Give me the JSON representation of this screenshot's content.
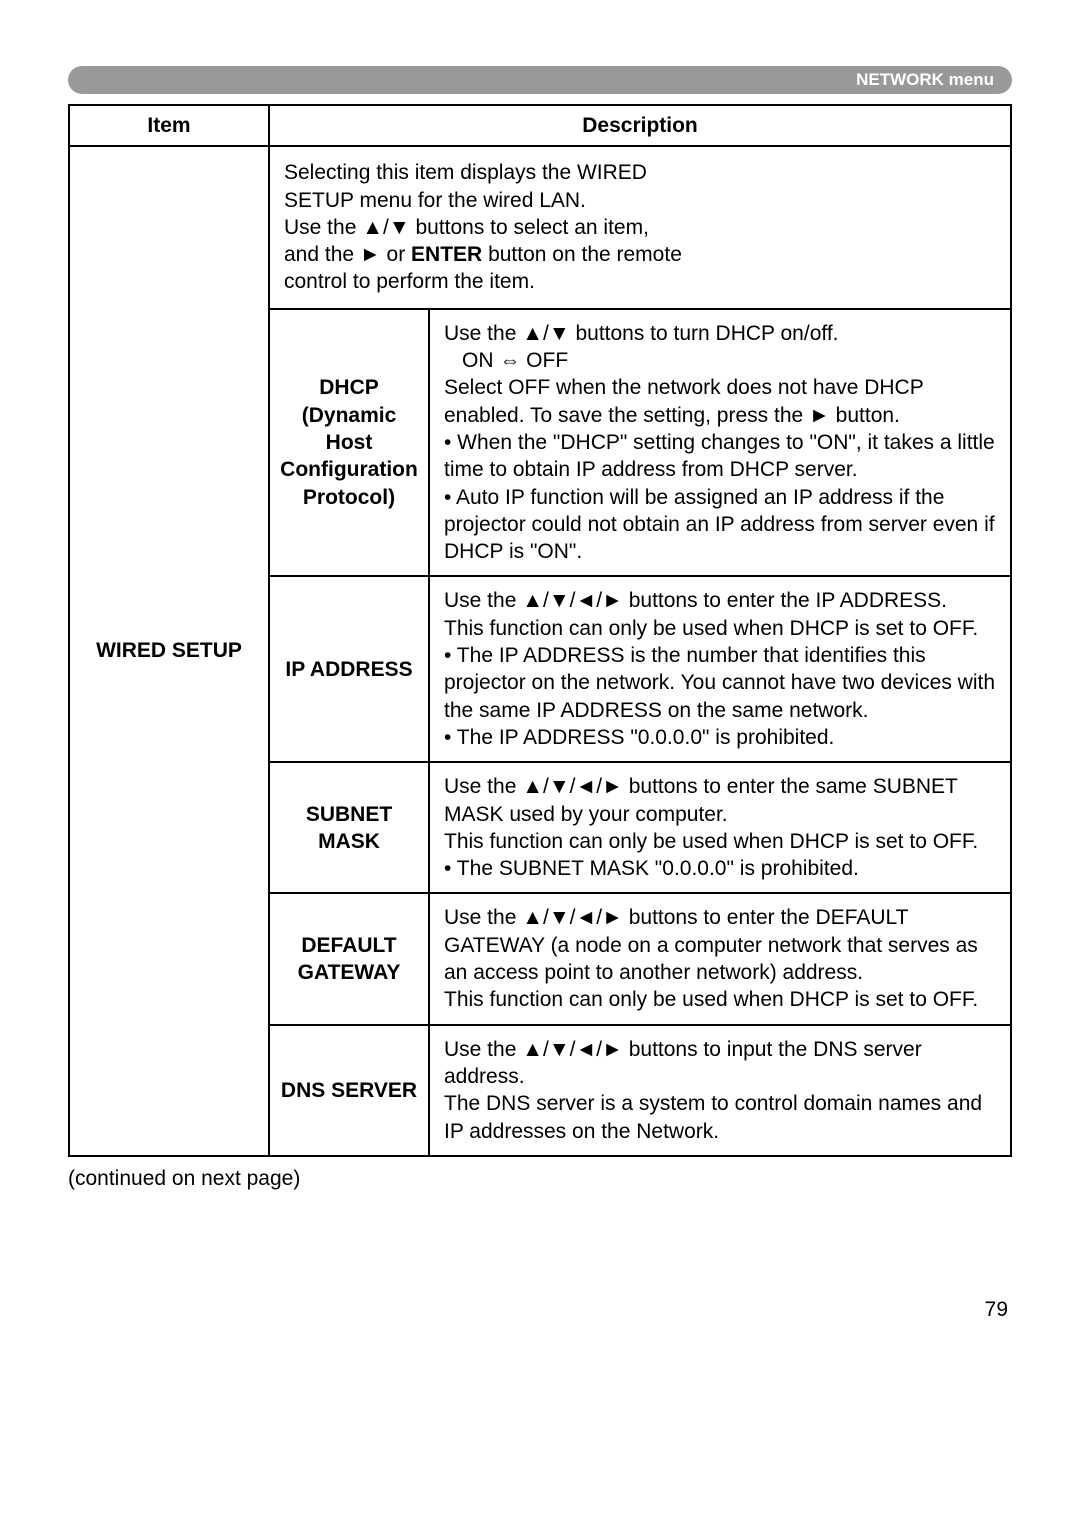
{
  "header": {
    "title": "NETWORK menu"
  },
  "table": {
    "headers": {
      "item": "Item",
      "description": "Description"
    },
    "leftLabel": "WIRED SETUP",
    "intro": {
      "l1": "Selecting this item displays the WIRED",
      "l2": "SETUP menu for the wired LAN.",
      "l3a": "Use the ",
      "l3b": " buttons to select an item,",
      "l4a": "and the ",
      "l4b": " or ",
      "enter": "ENTER",
      "l4c": " button on the remote",
      "l5": "control to perform the item."
    },
    "rows": {
      "dhcp": {
        "label1": "DHCP",
        "label2": "(Dynamic Host",
        "label3": "Configuration",
        "label4": "Protocol)",
        "d1a": "Use the ",
        "d1b": " buttons to turn DHCP on/off.",
        "d2": "ON ⇔ OFF",
        "d3a": "Select OFF when the network does not have DHCP enabled. To save the setting, press the ",
        "d3b": " button.",
        "d4": "• When the \"DHCP\" setting changes to \"ON\", it takes a little time to obtain IP address from DHCP server.",
        "d5": "• Auto IP function will be assigned an IP address if the projector could not obtain an IP address from server even if DHCP is \"ON\"."
      },
      "ip": {
        "label": "IP ADDRESS",
        "d1a": "Use the ",
        "d1b": " buttons to enter the IP ADDRESS.",
        "d2": "This function can only be used when DHCP is set to OFF.",
        "d3": "• The IP ADDRESS is the number that identifies this projector on the network. You cannot have two devices with the same IP ADDRESS on the same network.",
        "d4": "• The IP ADDRESS \"0.0.0.0\" is prohibited."
      },
      "subnet": {
        "label1": "SUBNET",
        "label2": "MASK",
        "d1a": "Use the ",
        "d1b": " buttons to enter the same SUBNET MASK used by your computer.",
        "d2": "This function can only be used when DHCP is set to OFF.",
        "d3": "• The SUBNET MASK \"0.0.0.0\" is prohibited."
      },
      "gateway": {
        "label1": "DEFAULT",
        "label2": "GATEWAY",
        "d1a": "Use the ",
        "d1b": " buttons to enter the DEFAULT GATEWAY (a node on a computer network that serves as an access point to another network) address.",
        "d2": "This function can only be used when DHCP is set to OFF."
      },
      "dns": {
        "label": "DNS SERVER",
        "d1a": "Use the ",
        "d1b": " buttons to input the DNS server address.",
        "d2": "The DNS server is a system to control domain names and IP addresses on the Network."
      }
    }
  },
  "symbols": {
    "updown": "▲/▼",
    "right": "►",
    "all4": "▲/▼/◄/►"
  },
  "footer": {
    "continued": "(continued on next page)",
    "page": "79"
  },
  "colors": {
    "headerBar": "#999999",
    "headerText": "#ffffff",
    "border": "#000000",
    "text": "#000000"
  }
}
